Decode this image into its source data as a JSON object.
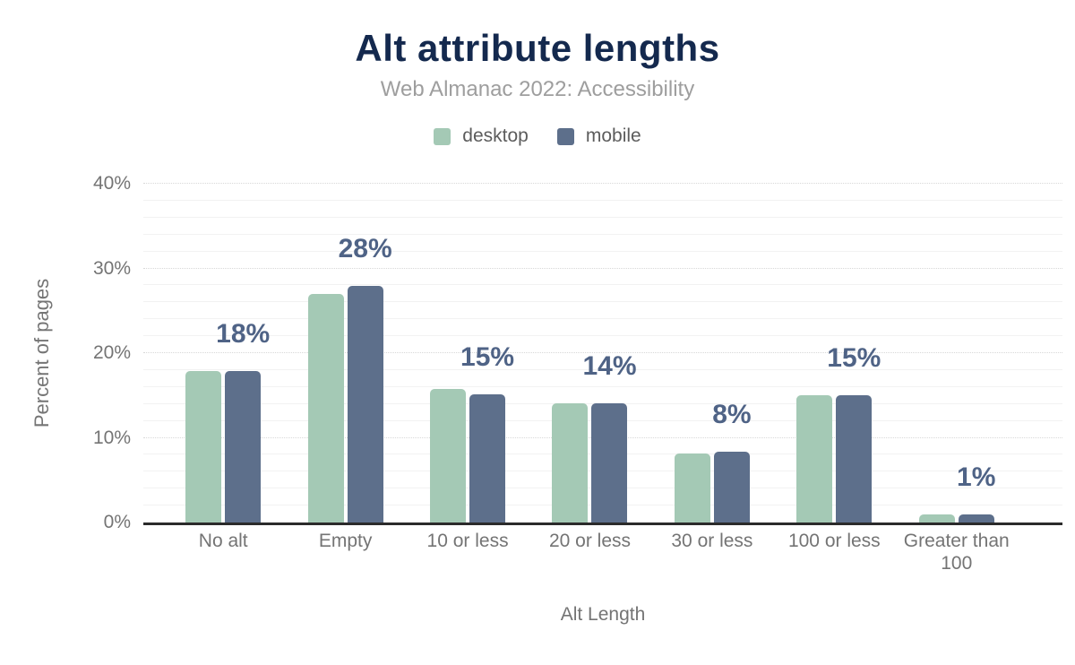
{
  "chart_data": {
    "type": "bar",
    "title": "Alt attribute lengths",
    "subtitle": "Web Almanac 2022: Accessibility",
    "xlabel": "Alt Length",
    "ylabel": "Percent of pages",
    "categories": [
      "No alt",
      "Empty",
      "10 or less",
      "20 or less",
      "30 or less",
      "100 or less",
      "Greater than 100"
    ],
    "series": [
      {
        "name": "desktop",
        "color": "#a4c9b5",
        "values": [
          17.9,
          27.0,
          15.8,
          14.1,
          8.2,
          15.0,
          1.0
        ]
      },
      {
        "name": "mobile",
        "color": "#5d6f8b",
        "values": [
          17.9,
          27.9,
          15.1,
          14.1,
          8.4,
          15.0,
          1.0
        ]
      }
    ],
    "bar_labels": [
      "18%",
      "28%",
      "15%",
      "14%",
      "8%",
      "15%",
      "1%"
    ],
    "ylim": [
      0,
      40
    ],
    "ytick_labels": [
      "0%",
      "10%",
      "20%",
      "30%",
      "40%"
    ],
    "ytick_step": 10,
    "ytick_minor_step": 2,
    "grid": true,
    "legend_position": "top",
    "colors": {
      "title": "#14294e",
      "subtitle": "#9e9e9e",
      "axis_text": "#747474",
      "data_label": "#4f6386",
      "axis_line": "#2b2b2b",
      "grid_major": "#d8d8d8",
      "grid_minor": "#f2f2f2"
    }
  }
}
